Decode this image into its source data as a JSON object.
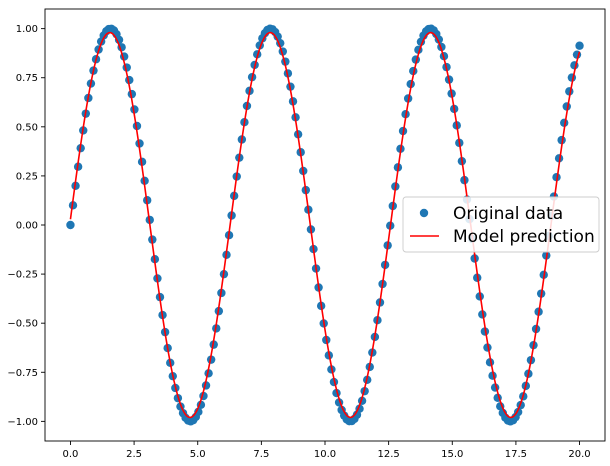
{
  "chart_data": {
    "type": "scatter",
    "title": "",
    "xlabel": "",
    "ylabel": "",
    "xlim": [
      -1.0,
      21.0
    ],
    "ylim": [
      -1.1,
      1.1
    ],
    "x_ticks": [
      0.0,
      2.5,
      5.0,
      7.5,
      10.0,
      12.5,
      15.0,
      17.5,
      20.0
    ],
    "x_tick_labels": [
      "0.0",
      "2.5",
      "5.0",
      "7.5",
      "10.0",
      "12.5",
      "15.0",
      "17.5",
      "20.0"
    ],
    "y_ticks": [
      1.0,
      0.75,
      0.5,
      0.25,
      0.0,
      -0.25,
      -0.5,
      -0.75,
      -1.0
    ],
    "y_tick_labels": [
      "1.00",
      "0.75",
      "0.50",
      "0.25",
      "0.00",
      "−0.25",
      "−0.50",
      "−0.75",
      "−1.00"
    ],
    "grid": false,
    "legend_position": "center-right",
    "series": [
      {
        "name": "Original data",
        "style": "markers",
        "color": "#1f77b4",
        "function": "y = sin(x)",
        "x_range": [
          0,
          20
        ],
        "samples": 200
      },
      {
        "name": "Model prediction",
        "style": "line",
        "color": "#ff0000",
        "function": "y = 0.98 * sin(x) (approximately, with a slight phase drift at larger x)",
        "x_range": [
          0,
          20
        ],
        "samples": 400
      }
    ]
  }
}
